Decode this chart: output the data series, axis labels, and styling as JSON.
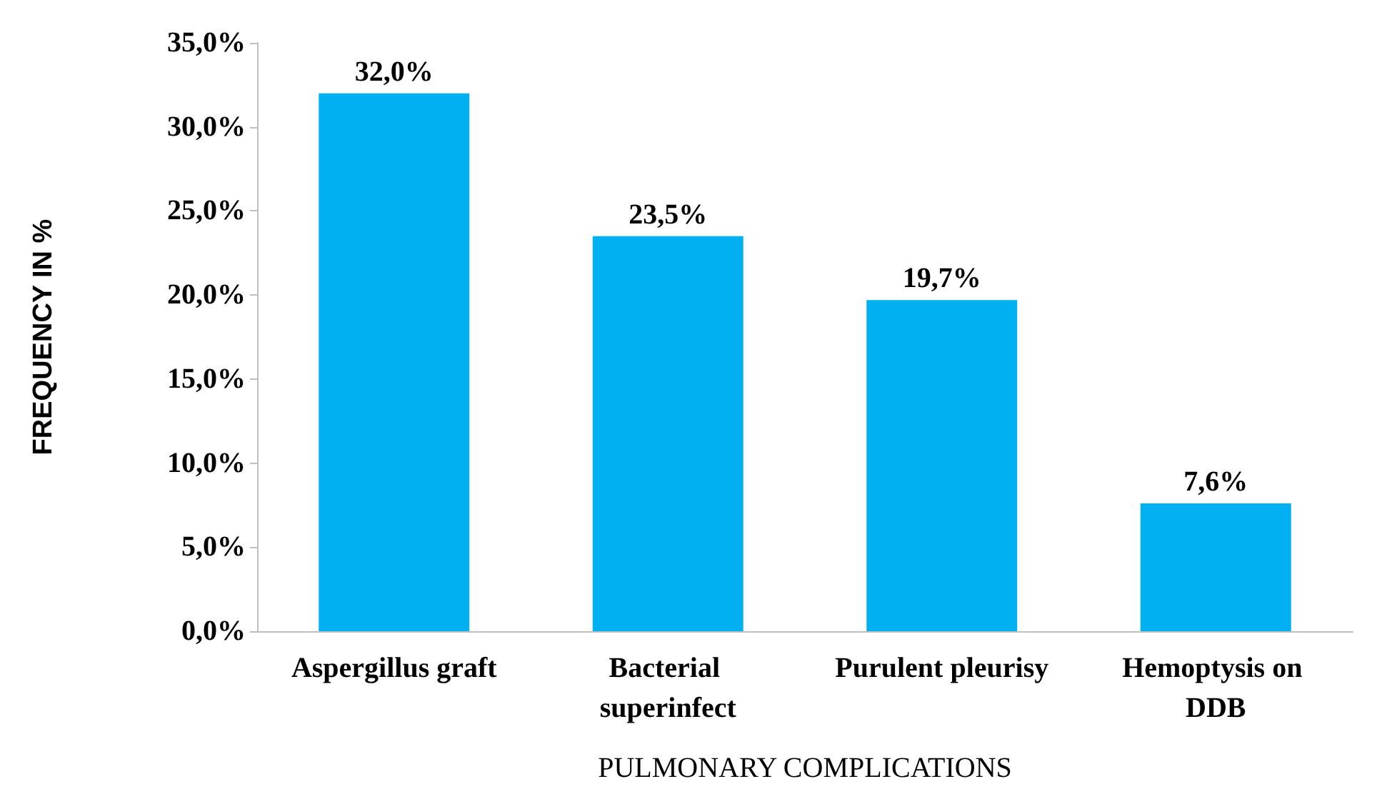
{
  "chart_data": {
    "type": "bar",
    "xlabel": "PULMONARY COMPLICATIONS",
    "ylabel": "FREQUENCY IN %",
    "categories": [
      "Aspergillus graft",
      "Bacterial superinfect",
      "Purulent pleurisy",
      "Hemoptysis on DDB"
    ],
    "values": [
      32.0,
      23.5,
      19.7,
      7.6
    ],
    "value_labels": [
      "32,0%",
      "23,5%",
      "19,7%",
      "7,6%"
    ],
    "color": "#00b0f0",
    "ylim": [
      0,
      35
    ],
    "yticks": [
      {
        "value": 0,
        "label": "0,0%"
      },
      {
        "value": 5,
        "label": "5,0%"
      },
      {
        "value": 10,
        "label": "10,0%"
      },
      {
        "value": 15,
        "label": "15,0%"
      },
      {
        "value": 20,
        "label": "20,0%"
      },
      {
        "value": 25,
        "label": "25,0%"
      },
      {
        "value": 30,
        "label": "30,0%"
      },
      {
        "value": 35,
        "label": "35,0%"
      }
    ],
    "grid": false
  }
}
